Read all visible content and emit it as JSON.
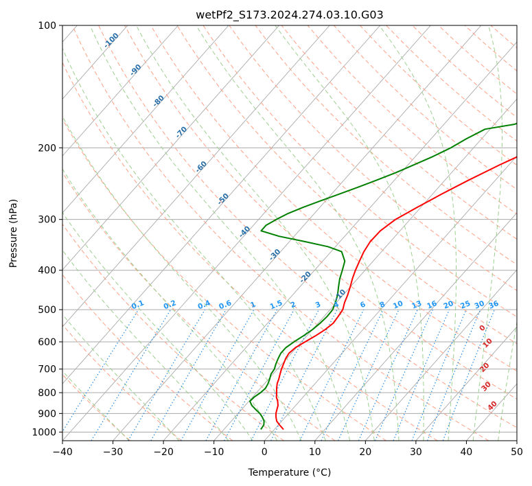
{
  "chart_data": {
    "type": "line",
    "title": "wetPf2_S173.2024.274.03.10.G03",
    "xlabel": "Temperature (°C)",
    "ylabel": "Pressure (hPa)",
    "xlim": [
      -40,
      50
    ],
    "ylim": [
      1050,
      100
    ],
    "y_scale": "log",
    "grid": true,
    "x_ticks": [
      -40,
      -30,
      -20,
      -10,
      0,
      10,
      20,
      30,
      40,
      50
    ],
    "y_ticks": [
      100,
      200,
      300,
      400,
      500,
      600,
      700,
      800,
      900,
      1000
    ],
    "isotherm_temps": [
      -160,
      -150,
      -140,
      -130,
      -120,
      -110,
      -100,
      -90,
      -80,
      -70,
      -60,
      -50,
      -40,
      -30,
      -20,
      -10,
      0,
      10,
      20,
      30,
      40,
      50
    ],
    "dry_adiabat_labels": [
      "-100",
      "-90",
      "-80",
      "-70",
      "-60",
      "-50",
      "-40",
      "-30",
      "-20",
      "-10"
    ],
    "mixing_ratio_labels": [
      "0.1",
      "0.2",
      "0.4",
      "0.6",
      "1",
      "1.5",
      "2",
      "3",
      "4",
      "6",
      "8",
      "10",
      "13",
      "16",
      "20",
      "25",
      "30",
      "36"
    ],
    "moist_adiabat_labels": [
      "0",
      "10",
      "20",
      "30",
      "40"
    ],
    "colors": {
      "temperature": "#ff0000",
      "dewpoint": "#008000",
      "dry_adiabat": "#fca084",
      "moist_adiabat": "#9ccf8f",
      "mixing_ratio": "#1e88e5",
      "isotherm": "#aaaaaa",
      "isobar": "#aaaaaa"
    },
    "series": [
      {
        "key": "temperature",
        "p": [
          985,
          960,
          940,
          920,
          900,
          880,
          860,
          840,
          820,
          800,
          780,
          760,
          740,
          720,
          700,
          680,
          660,
          640,
          620,
          600,
          580,
          560,
          540,
          520,
          500,
          480,
          460,
          440,
          420,
          400,
          380,
          360,
          340,
          320,
          300,
          280,
          260,
          240,
          220,
          200,
          180,
          160,
          140,
          120,
          100
        ],
        "t": [
          1.8,
          0.2,
          -1.0,
          -1.8,
          -2.5,
          -3.0,
          -3.5,
          -4.3,
          -5.3,
          -6.0,
          -6.8,
          -7.5,
          -8.0,
          -8.6,
          -9.2,
          -9.7,
          -10.2,
          -10.5,
          -10.2,
          -9.3,
          -8.3,
          -7.5,
          -7.0,
          -7.2,
          -7.5,
          -8.4,
          -9.1,
          -10.0,
          -11.0,
          -11.9,
          -12.7,
          -13.5,
          -14.0,
          -13.9,
          -12.9,
          -10.7,
          -8.2,
          -5.3,
          -1.8,
          2.5,
          8.0,
          15.5,
          24.2,
          34.5,
          47.0
        ]
      },
      {
        "key": "dewpoint",
        "p": [
          985,
          960,
          940,
          920,
          900,
          880,
          860,
          840,
          820,
          800,
          780,
          760,
          740,
          720,
          700,
          680,
          660,
          640,
          620,
          600,
          580,
          560,
          540,
          520,
          500,
          480,
          460,
          440,
          420,
          400,
          380,
          360,
          350,
          340,
          330,
          320,
          310,
          300,
          290,
          280,
          270,
          260,
          250,
          240,
          230,
          220,
          210,
          200,
          190,
          180,
          175,
          170,
          160,
          150,
          140,
          130,
          120,
          110,
          100
        ],
        "t": [
          -2.7,
          -2.9,
          -3.5,
          -4.5,
          -5.7,
          -7.2,
          -8.7,
          -9.8,
          -9.7,
          -9.2,
          -9.0,
          -9.3,
          -9.8,
          -10.4,
          -10.6,
          -11.2,
          -11.7,
          -12.1,
          -12.1,
          -11.5,
          -10.7,
          -10.0,
          -9.6,
          -9.4,
          -9.5,
          -10.2,
          -11.1,
          -12.3,
          -13.5,
          -14.5,
          -15.6,
          -17.9,
          -21.5,
          -27.0,
          -33.0,
          -37.5,
          -37.5,
          -36.5,
          -35.2,
          -33.3,
          -31.0,
          -28.5,
          -26.0,
          -23.5,
          -21.0,
          -18.8,
          -16.5,
          -14.5,
          -13.0,
          -11.0,
          -6.0,
          -4.5,
          -2.0,
          0.8,
          3.3,
          5.9,
          8.3,
          10.7,
          13.0
        ]
      }
    ]
  }
}
